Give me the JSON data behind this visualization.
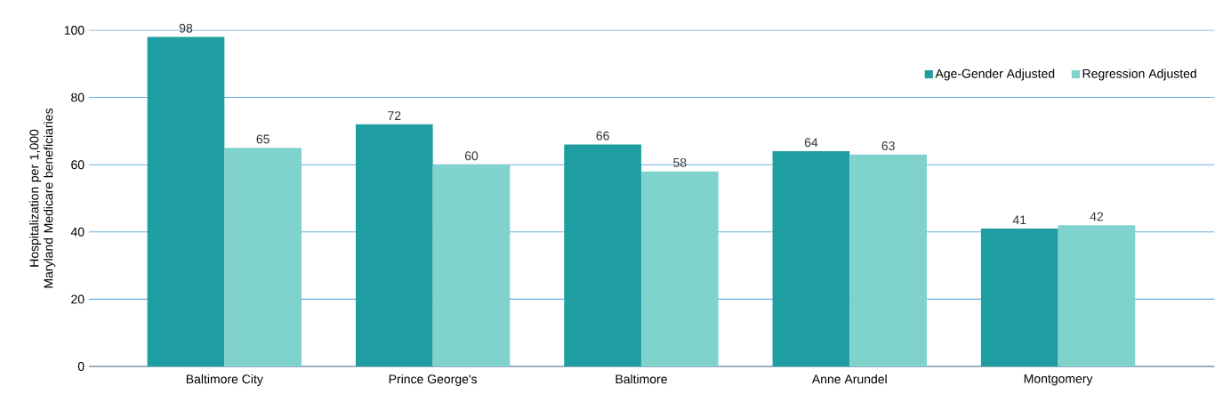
{
  "chart_data": {
    "type": "bar",
    "ylabel": "Hospitalization per 1,000 Maryland Medicare beneficiaries",
    "categories": [
      "Baltimore City",
      "Prince George's",
      "Baltimore",
      "Anne Arundel",
      "Montgomery"
    ],
    "series": [
      {
        "name": "Age-Gender Adjusted",
        "color": "#1e9ea0",
        "values": [
          98,
          72,
          66,
          64,
          41
        ]
      },
      {
        "name": "Regression Adjusted",
        "color": "#80d3cd",
        "values": [
          65,
          60,
          58,
          63,
          42
        ]
      }
    ],
    "ylim": [
      0,
      100
    ],
    "yticks": [
      0,
      20,
      40,
      60,
      80,
      100
    ],
    "grid": "y",
    "legend": "top right",
    "data_labels": true
  }
}
